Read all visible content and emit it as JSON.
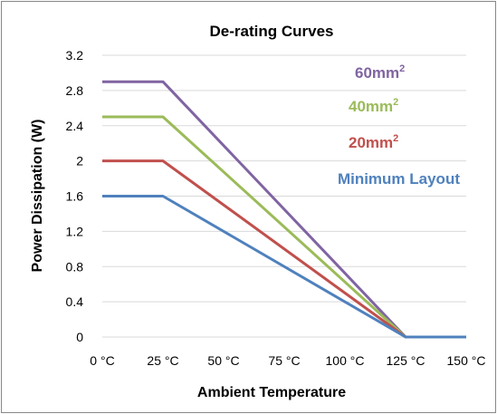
{
  "chart_data": {
    "type": "line",
    "title": "De-rating Curves",
    "xlabel": "Ambient Temperature",
    "ylabel": "Power Dissipation (W)",
    "xlim": [
      0,
      150
    ],
    "ylim": [
      0,
      3.2
    ],
    "x_ticks": [
      0,
      25,
      50,
      75,
      100,
      125,
      150
    ],
    "x_tick_labels": [
      "0 °C",
      "25 °C",
      "50 °C",
      "75 °C",
      "100 °C",
      "125 °C",
      "150 °C"
    ],
    "y_ticks": [
      0,
      0.4,
      0.8,
      1.2,
      1.6,
      2,
      2.4,
      2.8,
      3.2
    ],
    "y_tick_labels": [
      "0",
      "0.4",
      "0.8",
      "1.2",
      "1.6",
      "2",
      "2.4",
      "2.8",
      "3.2"
    ],
    "grid": "horizontal",
    "legend_placement": "right",
    "series": [
      {
        "name": "60mm",
        "superscript": "2",
        "color": "#8064a2",
        "points": [
          [
            0,
            2.9
          ],
          [
            25,
            2.9
          ],
          [
            125,
            0
          ],
          [
            150,
            0
          ]
        ]
      },
      {
        "name": "40mm",
        "superscript": "2",
        "color": "#9bbb59",
        "points": [
          [
            0,
            2.5
          ],
          [
            25,
            2.5
          ],
          [
            125,
            0
          ],
          [
            150,
            0
          ]
        ]
      },
      {
        "name": "20mm",
        "superscript": "2",
        "color": "#c0504d",
        "points": [
          [
            0,
            2.0
          ],
          [
            25,
            2.0
          ],
          [
            125,
            0
          ],
          [
            150,
            0
          ]
        ]
      },
      {
        "name": "Minimum Layout",
        "superscript": "",
        "color": "#4f81bd",
        "points": [
          [
            0,
            1.6
          ],
          [
            25,
            1.6
          ],
          [
            125,
            0
          ],
          [
            150,
            0
          ]
        ]
      }
    ]
  }
}
